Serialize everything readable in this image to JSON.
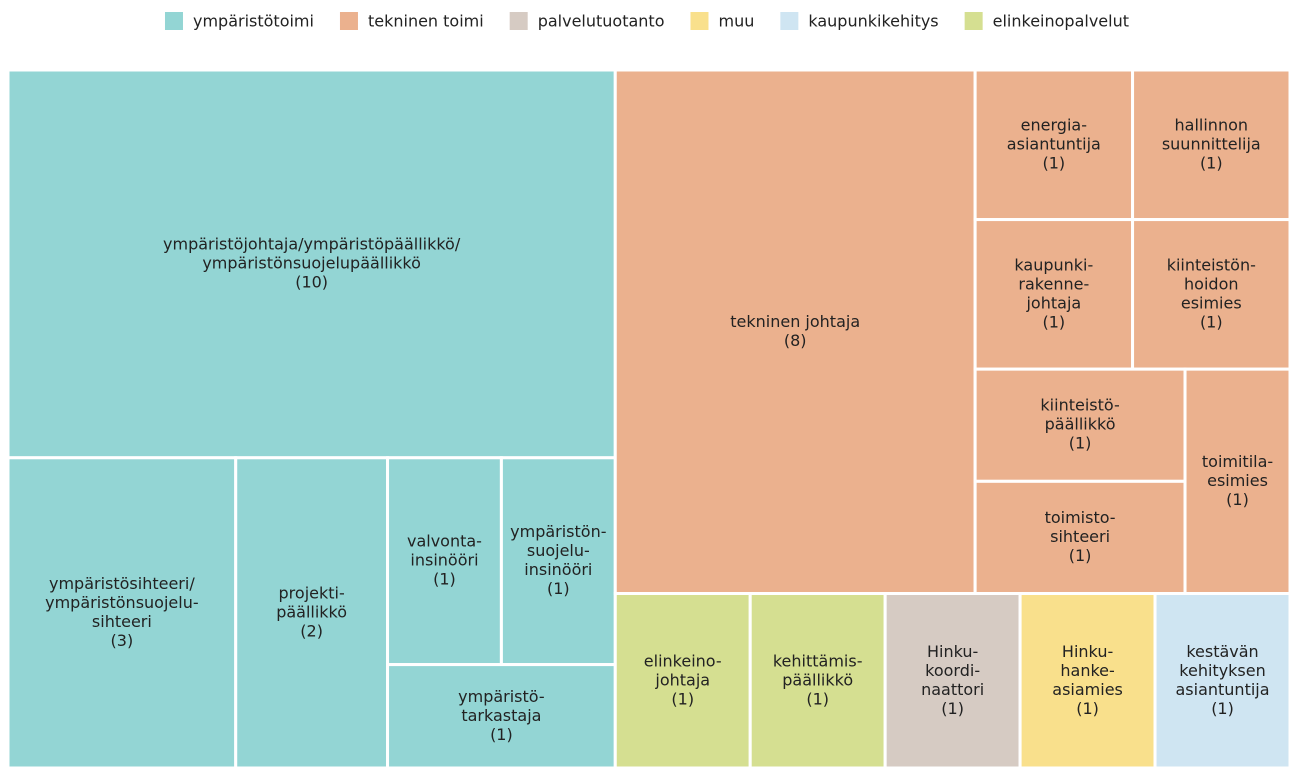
{
  "chart_data": {
    "type": "treemap",
    "groups": [
      {
        "name": "ympäristötoimi",
        "color": "#93d5d4"
      },
      {
        "name": "tekninen toimi",
        "color": "#ebb18e"
      },
      {
        "name": "palvelutuotanto",
        "color": "#d6cbc3"
      },
      {
        "name": "muu",
        "color": "#f9e08c"
      },
      {
        "name": "kaupunkikehitys",
        "color": "#cfe5f2"
      },
      {
        "name": "elinkeinopalvelut",
        "color": "#d5df91"
      }
    ],
    "nodes": [
      {
        "group": "ympäristötoimi",
        "lines": [
          "ympäristöjohtaja/ympäristöpäällikkö/",
          "ympäristönsuojelupäällikkö"
        ],
        "value": 10,
        "value_label": "(10)"
      },
      {
        "group": "ympäristötoimi",
        "lines": [
          "ympäristösihteeri/",
          "ympäristönsuojelu-",
          "sihteeri"
        ],
        "value": 3,
        "value_label": "(3)"
      },
      {
        "group": "ympäristötoimi",
        "lines": [
          "projekti-",
          "päällikkö"
        ],
        "value": 2,
        "value_label": "(2)"
      },
      {
        "group": "ympäristötoimi",
        "lines": [
          "valvonta-",
          "insinööri"
        ],
        "value": 1,
        "value_label": "(1)"
      },
      {
        "group": "ympäristötoimi",
        "lines": [
          "ympäristön-",
          "suojelu-",
          "insinööri"
        ],
        "value": 1,
        "value_label": "(1)"
      },
      {
        "group": "ympäristötoimi",
        "lines": [
          "ympäristö-",
          "tarkastaja"
        ],
        "value": 1,
        "value_label": "(1)"
      },
      {
        "group": "tekninen toimi",
        "lines": [
          "tekninen johtaja"
        ],
        "value": 8,
        "value_label": "(8)"
      },
      {
        "group": "tekninen toimi",
        "lines": [
          "energia-",
          "asiantuntija"
        ],
        "value": 1,
        "value_label": "(1)"
      },
      {
        "group": "tekninen toimi",
        "lines": [
          "kaupunki-",
          "rakenne-",
          "johtaja"
        ],
        "value": 1,
        "value_label": "(1)"
      },
      {
        "group": "tekninen toimi",
        "lines": [
          "hallinnon",
          "suunnittelija"
        ],
        "value": 1,
        "value_label": "(1)"
      },
      {
        "group": "tekninen toimi",
        "lines": [
          "kiinteistön-",
          "hoidon",
          "esimies"
        ],
        "value": 1,
        "value_label": "(1)"
      },
      {
        "group": "tekninen toimi",
        "lines": [
          "kiinteistö-",
          "päällikkö"
        ],
        "value": 1,
        "value_label": "(1)"
      },
      {
        "group": "tekninen toimi",
        "lines": [
          "toimisto-",
          "sihteeri"
        ],
        "value": 1,
        "value_label": "(1)"
      },
      {
        "group": "tekninen toimi",
        "lines": [
          "toimitila-",
          "esimies"
        ],
        "value": 1,
        "value_label": "(1)"
      },
      {
        "group": "elinkeinopalvelut",
        "lines": [
          "elinkeino-",
          "johtaja"
        ],
        "value": 1,
        "value_label": "(1)"
      },
      {
        "group": "elinkeinopalvelut",
        "lines": [
          "kehittämis-",
          "päällikkö"
        ],
        "value": 1,
        "value_label": "(1)"
      },
      {
        "group": "palvelutuotanto",
        "lines": [
          "Hinku-",
          "koordi-",
          "naattori"
        ],
        "value": 1,
        "value_label": "(1)"
      },
      {
        "group": "muu",
        "lines": [
          "Hinku-",
          "hanke-",
          "asiamies"
        ],
        "value": 1,
        "value_label": "(1)"
      },
      {
        "group": "kaupunkikehitys",
        "lines": [
          "kestävän",
          "kehityksen",
          "asiantuntija"
        ],
        "value": 1,
        "value_label": "(1)"
      }
    ]
  }
}
